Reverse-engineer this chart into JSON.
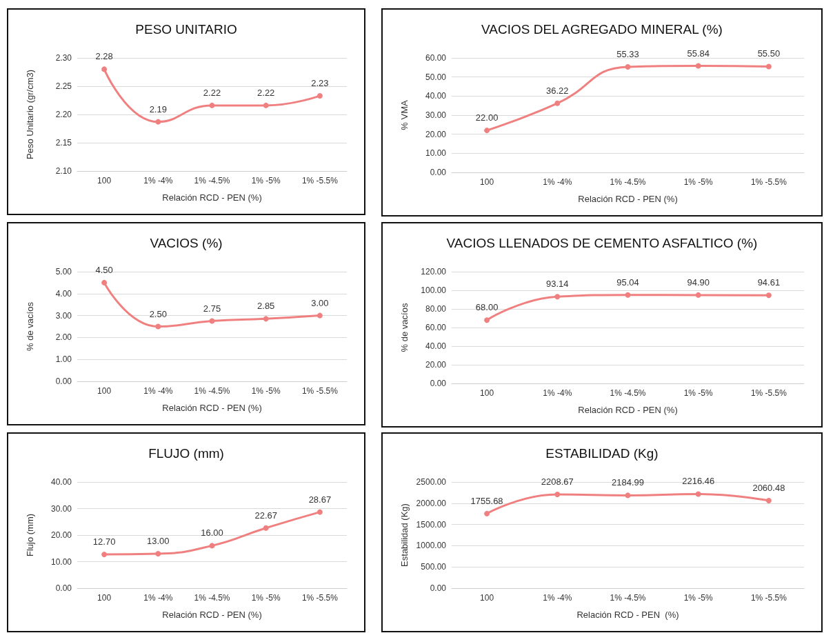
{
  "chart_data": [
    {
      "type": "line",
      "title": "PESO UNITARIO",
      "xlabel": "Relación RCD - PEN (%)",
      "ylabel": "Peso Unitario (gr/cm3)",
      "categories": [
        "100",
        "1% -4%",
        "1% -4.5%",
        "1% -5%",
        "1% -5.5%"
      ],
      "series": [
        {
          "color": "#f08080",
          "values": [
            2.28,
            2.187,
            2.216,
            2.216,
            2.233
          ],
          "value_labels": [
            "2.28",
            "2.19",
            "2.22",
            "2.22",
            "2.23"
          ]
        }
      ],
      "ylim": [
        2.1,
        2.3
      ],
      "yticks": [
        {
          "value": 2.1,
          "label": "2.10"
        },
        {
          "value": 2.15,
          "label": "2.15"
        },
        {
          "value": 2.2,
          "label": "2.20"
        },
        {
          "value": 2.25,
          "label": "2.25"
        },
        {
          "value": 2.3,
          "label": "2.30"
        }
      ],
      "grid": "y",
      "marker": "circle",
      "line_style": "solid"
    },
    {
      "type": "line",
      "title": "VACIOS DEL AGREGADO MINERAL (%)",
      "xlabel": "Relación RCD - PEN (%)",
      "ylabel": "% VMA",
      "categories": [
        "100",
        "1% -4%",
        "1% -4.5%",
        "1% -5%",
        "1% -5.5%"
      ],
      "series": [
        {
          "color": "#f08080",
          "values": [
            22,
            36.22,
            55.33,
            55.84,
            55.5
          ],
          "value_labels": [
            "22.00",
            "36.22",
            "55.33",
            "55.84",
            "55.50"
          ]
        }
      ],
      "ylim": [
        0,
        60
      ],
      "yticks": [
        {
          "value": 0,
          "label": "0.00"
        },
        {
          "value": 10,
          "label": "10.00"
        },
        {
          "value": 20,
          "label": "20.00"
        },
        {
          "value": 30,
          "label": "30.00"
        },
        {
          "value": 40,
          "label": "40.00"
        },
        {
          "value": 50,
          "label": "50.00"
        },
        {
          "value": 60,
          "label": "60.00"
        }
      ],
      "grid": "y",
      "marker": "circle",
      "line_style": "solid"
    },
    {
      "type": "line",
      "title": "VACIOS (%)",
      "xlabel": "Relación RCD - PEN (%)",
      "ylabel": "% de vacíos",
      "categories": [
        "100",
        "1% -4%",
        "1% -4.5%",
        "1% -5%",
        "1% -5.5%"
      ],
      "series": [
        {
          "color": "#f08080",
          "values": [
            4.5,
            2.5,
            2.75,
            2.85,
            3.0
          ],
          "value_labels": [
            "4.50",
            "2.50",
            "2.75",
            "2.85",
            "3.00"
          ]
        }
      ],
      "ylim": [
        0,
        5
      ],
      "yticks": [
        {
          "value": 0,
          "label": "0.00"
        },
        {
          "value": 1,
          "label": "1.00"
        },
        {
          "value": 2,
          "label": "2.00"
        },
        {
          "value": 3,
          "label": "3.00"
        },
        {
          "value": 4,
          "label": "4.00"
        },
        {
          "value": 5,
          "label": "5.00"
        }
      ],
      "grid": "y",
      "marker": "circle",
      "line_style": "solid"
    },
    {
      "type": "line",
      "title": "VACIOS LLENADOS DE CEMENTO ASFALTICO (%)",
      "xlabel": "Relación RCD - PEN (%)",
      "ylabel": "% de vacíos",
      "categories": [
        "100",
        "1% -4%",
        "1% -4.5%",
        "1% -5%",
        "1% -5.5%"
      ],
      "series": [
        {
          "color": "#f08080",
          "values": [
            68,
            93.14,
            95.04,
            94.9,
            94.61
          ],
          "value_labels": [
            "68.00",
            "93.14",
            "95.04",
            "94.90",
            "94.61"
          ]
        }
      ],
      "ylim": [
        0,
        120
      ],
      "yticks": [
        {
          "value": 0,
          "label": "0.00"
        },
        {
          "value": 20,
          "label": "20.00"
        },
        {
          "value": 40,
          "label": "40.00"
        },
        {
          "value": 60,
          "label": "60.00"
        },
        {
          "value": 80,
          "label": "80.00"
        },
        {
          "value": 100,
          "label": "100.00"
        },
        {
          "value": 120,
          "label": "120.00"
        }
      ],
      "grid": "y",
      "marker": "circle",
      "line_style": "solid"
    },
    {
      "type": "line",
      "title": "FLUJO (mm)",
      "xlabel": "Relación RCD - PEN (%)",
      "ylabel": "Flujo (mm)",
      "categories": [
        "100",
        "1% -4%",
        "1% -4.5%",
        "1% -5%",
        "1% -5.5%"
      ],
      "series": [
        {
          "color": "#f08080",
          "values": [
            12.7,
            13,
            16,
            22.67,
            28.67
          ],
          "value_labels": [
            "12.70",
            "13.00",
            "16.00",
            "22.67",
            "28.67"
          ]
        }
      ],
      "ylim": [
        0,
        40
      ],
      "yticks": [
        {
          "value": 0,
          "label": "0.00"
        },
        {
          "value": 10,
          "label": "10.00"
        },
        {
          "value": 20,
          "label": "20.00"
        },
        {
          "value": 30,
          "label": "30.00"
        },
        {
          "value": 40,
          "label": "40.00"
        }
      ],
      "grid": "y",
      "marker": "circle",
      "line_style": "solid"
    },
    {
      "type": "line",
      "title": "ESTABILIDAD (Kg)",
      "xlabel": "Relación RCD - PEN  (%)",
      "ylabel": "Estabilidad (Kg)",
      "categories": [
        "100",
        "1% -4%",
        "1% -4.5%",
        "1% -5%",
        "1% -5.5%"
      ],
      "series": [
        {
          "color": "#f08080",
          "values": [
            1755.68,
            2208.67,
            2184.99,
            2216.46,
            2060.48
          ],
          "value_labels": [
            "1755.68",
            "2208.67",
            "2184.99",
            "2216.46",
            "2060.48"
          ]
        }
      ],
      "ylim": [
        0,
        2500
      ],
      "yticks": [
        {
          "value": 0,
          "label": "0.00"
        },
        {
          "value": 500,
          "label": "500.00"
        },
        {
          "value": 1000,
          "label": "1000.00"
        },
        {
          "value": 1500,
          "label": "1500.00"
        },
        {
          "value": 2000,
          "label": "2000.00"
        },
        {
          "value": 2500,
          "label": "2500.00"
        }
      ],
      "grid": "y",
      "marker": "circle",
      "line_style": "solid"
    }
  ]
}
